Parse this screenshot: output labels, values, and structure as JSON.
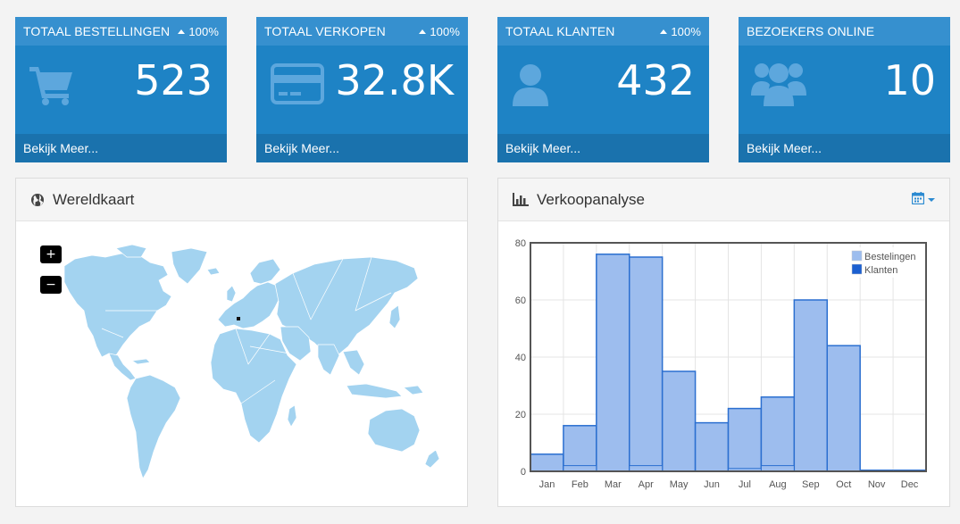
{
  "colors": {
    "tile": "#1e83c5",
    "tile_head": "#3690cf",
    "tile_foot": "#1a72ad",
    "map_land": "#a3d3f0",
    "bar_fill": "#9dbdee",
    "bar_stroke": "#2b6fd0"
  },
  "stats": [
    {
      "title": "Totaal Bestellingen",
      "pct": "100%",
      "value": "523",
      "link": "Bekijk Meer...",
      "icon": "shopping-cart-icon"
    },
    {
      "title": "Totaal Verkopen",
      "pct": "100%",
      "value": "32.8K",
      "link": "Bekijk Meer...",
      "icon": "credit-card-icon"
    },
    {
      "title": "Totaal Klanten",
      "pct": "100%",
      "value": "432",
      "link": "Bekijk Meer...",
      "icon": "user-icon"
    },
    {
      "title": "Bezoekers Online",
      "pct": "",
      "value": "10",
      "link": "Bekijk Meer...",
      "icon": "users-icon"
    }
  ],
  "world_map": {
    "title": "Wereldkaart",
    "icon": "globe-icon",
    "zoom_in": "+",
    "zoom_out": "−"
  },
  "sales": {
    "title": "Verkoopanalyse",
    "icon": "bar-chart-icon",
    "calendar_icon": "calendar-icon"
  },
  "chart_data": {
    "type": "bar",
    "categories": [
      "Jan",
      "Feb",
      "Mar",
      "Apr",
      "May",
      "Jun",
      "Jul",
      "Aug",
      "Sep",
      "Oct",
      "Nov",
      "Dec"
    ],
    "series": [
      {
        "name": "Bestelingen",
        "values": [
          6,
          16,
          76,
          75,
          35,
          17,
          22,
          26,
          60,
          44,
          0,
          0
        ],
        "color": "#9dbdee"
      },
      {
        "name": "Klanten",
        "values": [
          0,
          2,
          0,
          2,
          0,
          0,
          1,
          2,
          0,
          0,
          0,
          0
        ],
        "color": "#1b5fd0"
      }
    ],
    "yticks": [
      0,
      20,
      40,
      60,
      80
    ],
    "ylim": [
      0,
      80
    ],
    "grid": true,
    "legend": "top-right"
  }
}
